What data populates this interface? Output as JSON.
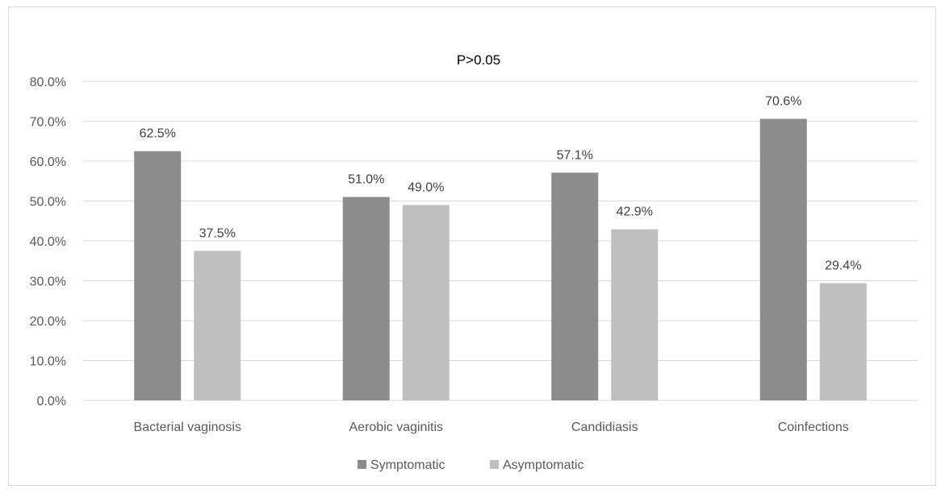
{
  "chart_data": {
    "type": "bar",
    "title": "P>0.05",
    "categories": [
      "Bacterial vaginosis",
      "Aerobic vaginitis",
      "Candidiasis",
      "Coinfections"
    ],
    "series": [
      {
        "name": "Symptomatic",
        "color": "#8c8c8c",
        "values": [
          62.5,
          51.0,
          57.1,
          70.6
        ],
        "labels": [
          "62.5%",
          "51.0%",
          "57.1%",
          "70.6%"
        ]
      },
      {
        "name": "Asymptomatic",
        "color": "#bfbfbf",
        "values": [
          37.5,
          49.0,
          42.9,
          29.4
        ],
        "labels": [
          "37.5%",
          "49.0%",
          "42.9%",
          "29.4%"
        ]
      }
    ],
    "ylim": [
      0,
      80
    ],
    "yticks": [
      0,
      10,
      20,
      30,
      40,
      50,
      60,
      70,
      80
    ],
    "ytick_labels": [
      "0.0%",
      "10.0%",
      "20.0%",
      "30.0%",
      "40.0%",
      "50.0%",
      "60.0%",
      "70.0%",
      "80.0%"
    ],
    "xlabel": "",
    "ylabel": "",
    "grid": true,
    "gridline_color": "#d9d9d9",
    "legend_position": "bottom"
  }
}
